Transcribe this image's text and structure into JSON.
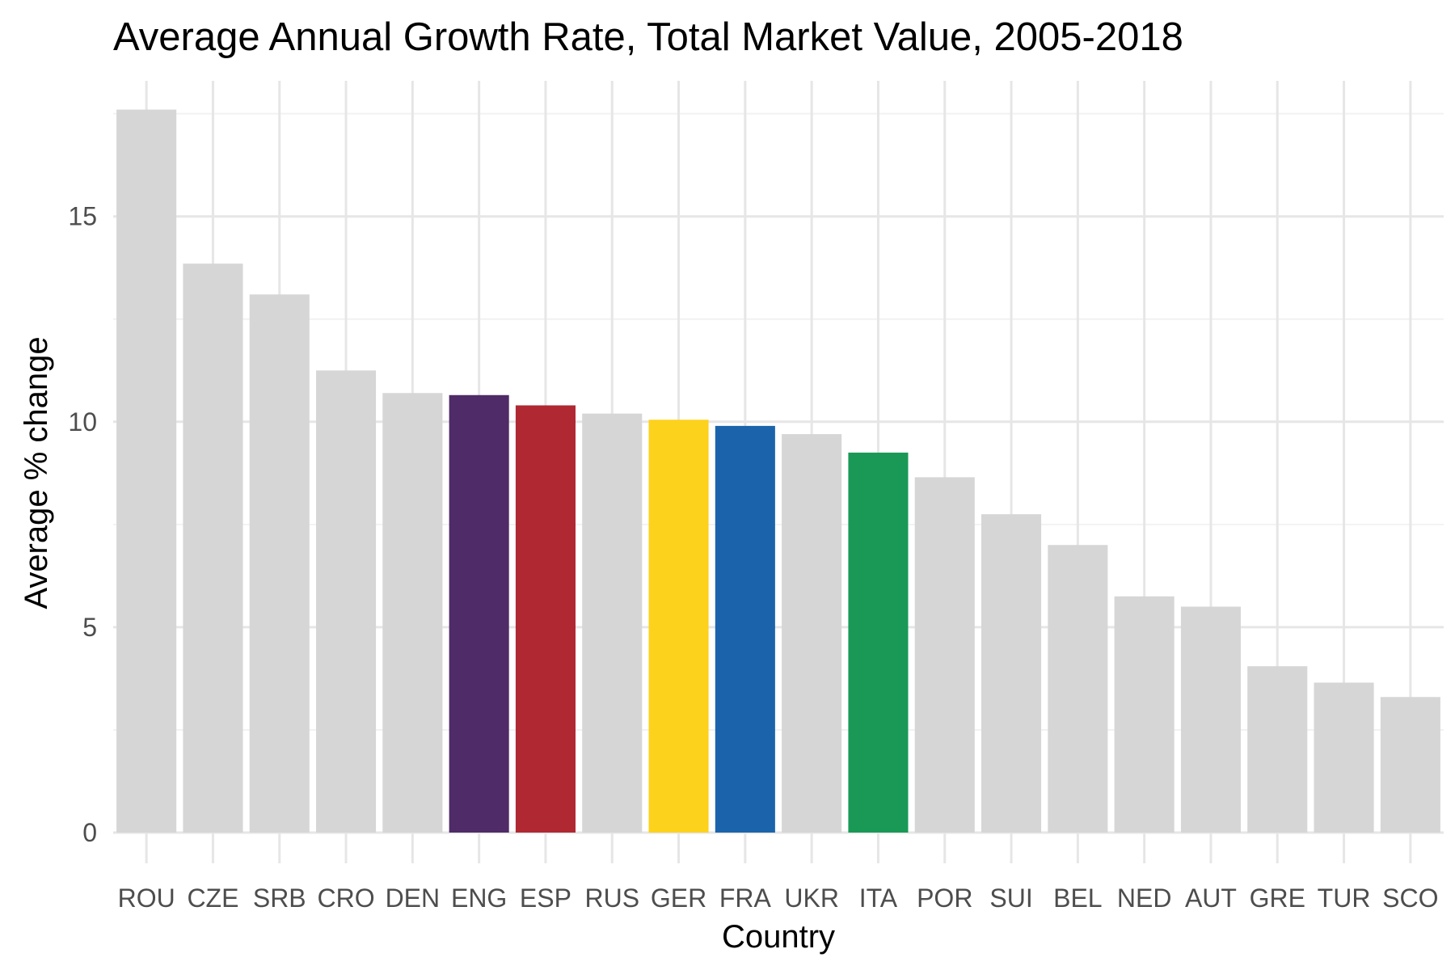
{
  "chart_data": {
    "type": "bar",
    "title": "Average Annual Growth Rate, Total Market Value, 2005-2018",
    "xlabel": "Country",
    "ylabel": "Average % change",
    "categories": [
      "ROU",
      "CZE",
      "SRB",
      "CRO",
      "DEN",
      "ENG",
      "ESP",
      "RUS",
      "GER",
      "FRA",
      "UKR",
      "ITA",
      "POR",
      "SUI",
      "BEL",
      "NED",
      "AUT",
      "GRE",
      "TUR",
      "SCO"
    ],
    "values": [
      17.6,
      13.85,
      13.1,
      11.25,
      10.7,
      10.65,
      10.4,
      10.2,
      10.05,
      9.9,
      9.7,
      9.25,
      8.65,
      7.75,
      7.0,
      5.75,
      5.5,
      4.05,
      3.65,
      3.3
    ],
    "ylim": [
      0,
      18.3
    ],
    "yticks": [
      0,
      5,
      10,
      15
    ],
    "ytick_labels": [
      "0",
      "5",
      "10",
      "15"
    ],
    "grid": true,
    "legend": "none",
    "colors": {
      "default": "#d6d6d6",
      "ENG": "#4f2b67",
      "ESP": "#b02832",
      "GER": "#fdd21c",
      "FRA": "#1b64ab",
      "ITA": "#1a9956"
    },
    "grid_colors": {
      "major": "#e6e6e6",
      "minor": "#f2f2f2"
    }
  }
}
